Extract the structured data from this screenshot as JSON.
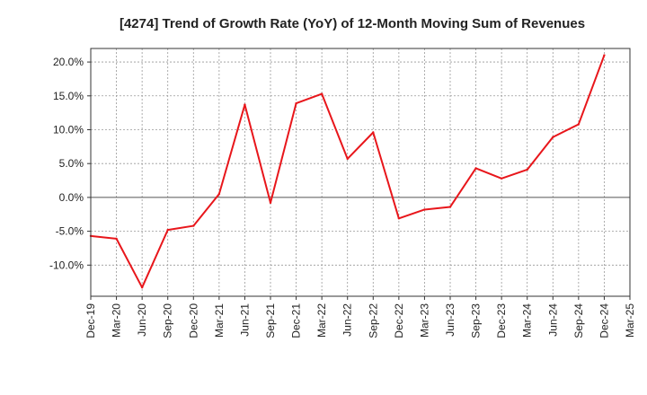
{
  "chart_data": {
    "type": "line",
    "title": "[4274]  Trend of Growth Rate (YoY) of 12-Month Moving Sum of Revenues",
    "xlabel": "",
    "ylabel": "",
    "categories": [
      "Dec-19",
      "Mar-20",
      "Jun-20",
      "Sep-20",
      "Dec-20",
      "Mar-21",
      "Jun-21",
      "Sep-21",
      "Dec-21",
      "Mar-22",
      "Jun-22",
      "Sep-22",
      "Dec-22",
      "Mar-23",
      "Jun-23",
      "Sep-23",
      "Dec-23",
      "Mar-24",
      "Jun-24",
      "Sep-24",
      "Dec-24",
      "Mar-25"
    ],
    "y_tick_labels": [
      "20.0%",
      "15.0%",
      "10.0%",
      "5.0%",
      "0.0%",
      "-5.0%",
      "-10.0%"
    ],
    "y_tick_values": [
      20,
      15,
      10,
      5,
      0,
      -5,
      -10
    ],
    "ylim": [
      -14.6,
      22
    ],
    "grid": true,
    "legend": "none",
    "series": [
      {
        "color": "#e8161b",
        "values": [
          -5.7,
          -6.1,
          -13.3,
          -4.8,
          -4.2,
          0.5,
          13.7,
          -0.8,
          13.9,
          15.3,
          5.7,
          9.6,
          -3.1,
          -1.8,
          -1.4,
          4.3,
          2.8,
          4.1,
          8.9,
          10.8,
          21.0,
          null
        ]
      }
    ]
  }
}
